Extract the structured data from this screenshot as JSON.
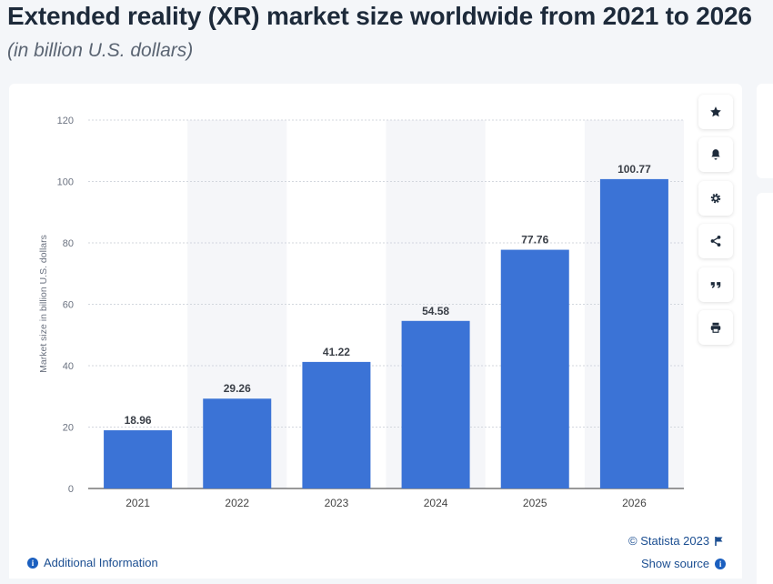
{
  "header": {
    "title": "Extended reality (XR) market size worldwide from 2021 to 2026",
    "subtitle": "(in billion U.S. dollars)"
  },
  "toolbar": {
    "icons": [
      "star-icon",
      "bell-icon",
      "gear-icon",
      "share-icon",
      "quote-icon",
      "print-icon"
    ]
  },
  "footer": {
    "additional_info": "Additional Information",
    "copyright": "© Statista 2023",
    "show_source": "Show source"
  },
  "chart_data": {
    "type": "bar",
    "categories": [
      "2021",
      "2022",
      "2023",
      "2024",
      "2025",
      "2026"
    ],
    "values": [
      18.96,
      29.26,
      41.22,
      54.58,
      77.76,
      100.77
    ],
    "value_labels": [
      "18.96",
      "29.26",
      "41.22",
      "54.58",
      "77.76",
      "100.77"
    ],
    "ylabel": "Market size in billion U.S. dollars",
    "xlabel": "",
    "ylim": [
      0,
      120
    ],
    "yticks": [
      0,
      20,
      40,
      60,
      80,
      100,
      120
    ],
    "grid": true,
    "bar_color": "#3b73d6",
    "band_color": "#f5f6f9"
  }
}
